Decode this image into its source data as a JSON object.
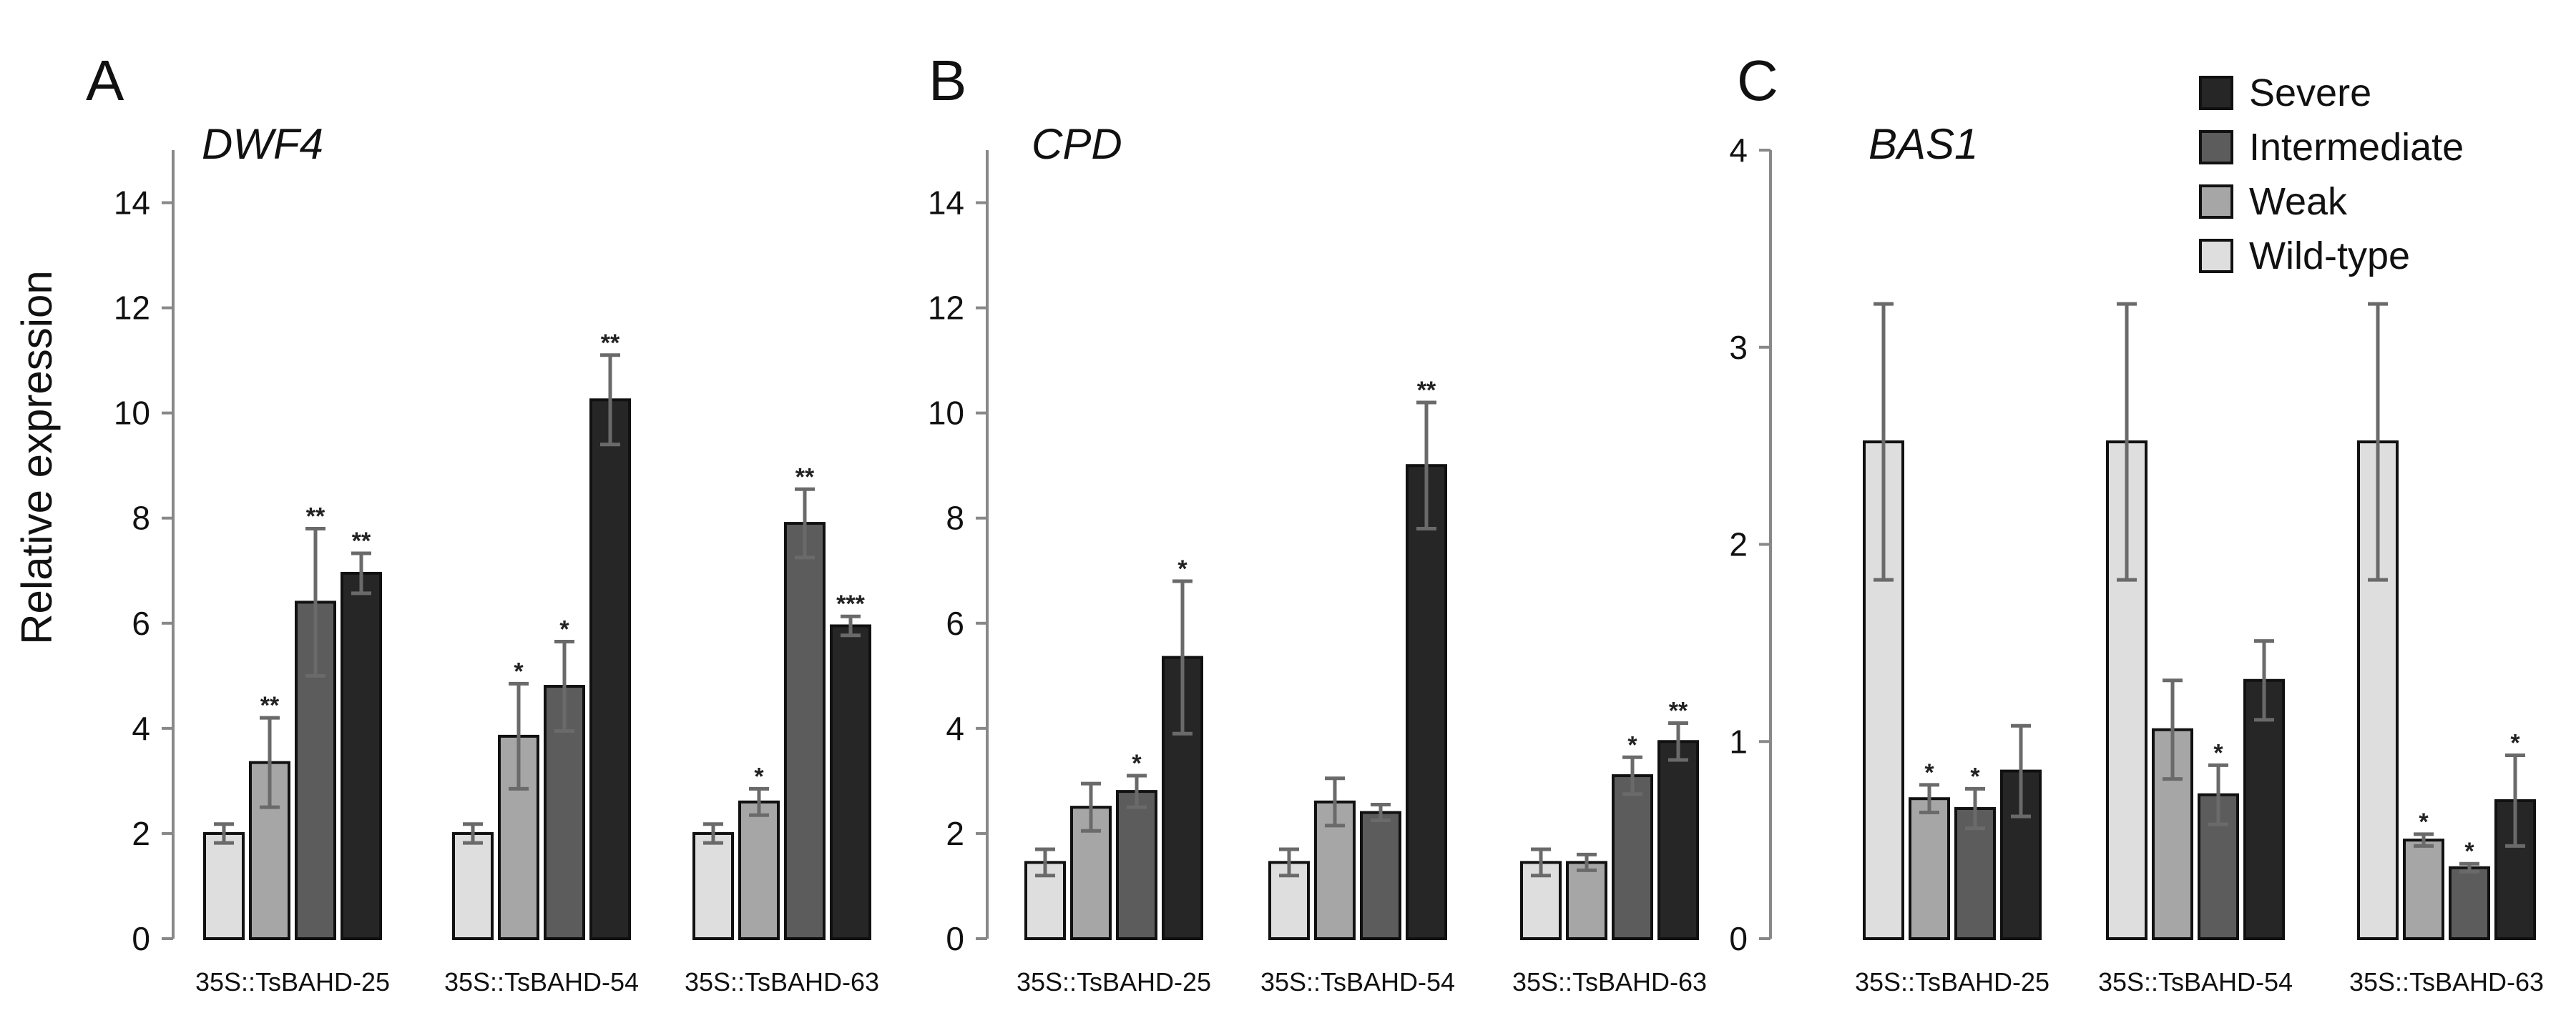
{
  "ylabel": "Relative expression",
  "legend": {
    "items": [
      {
        "label": "Severe",
        "color": "#262626"
      },
      {
        "label": "Intermediate",
        "color": "#5c5c5c"
      },
      {
        "label": "Weak",
        "color": "#a6a6a6"
      },
      {
        "label": "Wild-type",
        "color": "#dedede"
      }
    ]
  },
  "chart_data": [
    {
      "type": "bar",
      "panel": "A",
      "title": "DWF4",
      "ylabel": "Relative expression",
      "ylim": [
        0,
        15
      ],
      "yticks": [
        0,
        2,
        4,
        6,
        8,
        10,
        12,
        14
      ],
      "categories": [
        "35S::TsBAHD-25",
        "35S::TsBAHD-54",
        "35S::TsBAHD-63"
      ],
      "series": [
        {
          "name": "Wild-type",
          "values": [
            2.0,
            2.0,
            2.0
          ],
          "errors": [
            0.18,
            0.18,
            0.18
          ],
          "sig": [
            "",
            "",
            ""
          ]
        },
        {
          "name": "Weak",
          "values": [
            3.35,
            3.85,
            2.6
          ],
          "errors": [
            0.85,
            1.0,
            0.25
          ],
          "sig": [
            "**",
            "*",
            "*"
          ]
        },
        {
          "name": "Intermediate",
          "values": [
            6.4,
            4.8,
            7.9
          ],
          "errors": [
            1.4,
            0.85,
            0.65
          ],
          "sig": [
            "**",
            "*",
            "**"
          ]
        },
        {
          "name": "Severe",
          "values": [
            6.95,
            10.25,
            5.95
          ],
          "errors": [
            0.38,
            0.85,
            0.18
          ],
          "sig": [
            "**",
            "**",
            "***"
          ]
        }
      ]
    },
    {
      "type": "bar",
      "panel": "B",
      "title": "CPD",
      "ylim": [
        0,
        15
      ],
      "yticks": [
        0,
        2,
        4,
        6,
        8,
        10,
        12,
        14
      ],
      "categories": [
        "35S::TsBAHD-25",
        "35S::TsBAHD-54",
        "35S::TsBAHD-63"
      ],
      "series": [
        {
          "name": "Wild-type",
          "values": [
            1.45,
            1.45,
            1.45
          ],
          "errors": [
            0.25,
            0.25,
            0.25
          ],
          "sig": [
            "",
            "",
            ""
          ]
        },
        {
          "name": "Weak",
          "values": [
            2.5,
            2.6,
            1.45
          ],
          "errors": [
            0.45,
            0.45,
            0.15
          ],
          "sig": [
            "",
            "",
            ""
          ]
        },
        {
          "name": "Intermediate",
          "values": [
            2.8,
            2.4,
            3.1
          ],
          "errors": [
            0.3,
            0.15,
            0.35
          ],
          "sig": [
            "*",
            "",
            "*"
          ]
        },
        {
          "name": "Severe",
          "values": [
            5.35,
            9.0,
            3.75
          ],
          "errors": [
            1.45,
            1.2,
            0.35
          ],
          "sig": [
            "*",
            "**",
            "**"
          ]
        }
      ]
    },
    {
      "type": "bar",
      "panel": "C",
      "title": "BAS1",
      "ylim": [
        0,
        4
      ],
      "yticks": [
        0,
        1,
        2,
        3,
        4
      ],
      "categories": [
        "35S::TsBAHD-25",
        "35S::TsBAHD-54",
        "35S::TsBAHD-63"
      ],
      "series": [
        {
          "name": "Wild-type",
          "values": [
            2.52,
            2.52,
            2.52
          ],
          "errors": [
            0.7,
            0.7,
            0.7
          ],
          "sig": [
            "",
            "",
            ""
          ]
        },
        {
          "name": "Weak",
          "values": [
            0.71,
            1.06,
            0.5
          ],
          "errors": [
            0.07,
            0.25,
            0.03
          ],
          "sig": [
            "*",
            "",
            "*"
          ]
        },
        {
          "name": "Intermediate",
          "values": [
            0.66,
            0.73,
            0.36
          ],
          "errors": [
            0.1,
            0.15,
            0.02
          ],
          "sig": [
            "*",
            "*",
            "*"
          ]
        },
        {
          "name": "Severe",
          "values": [
            0.85,
            1.31,
            0.7
          ],
          "errors": [
            0.23,
            0.2,
            0.23
          ],
          "sig": [
            "",
            "",
            "*"
          ]
        }
      ]
    }
  ]
}
